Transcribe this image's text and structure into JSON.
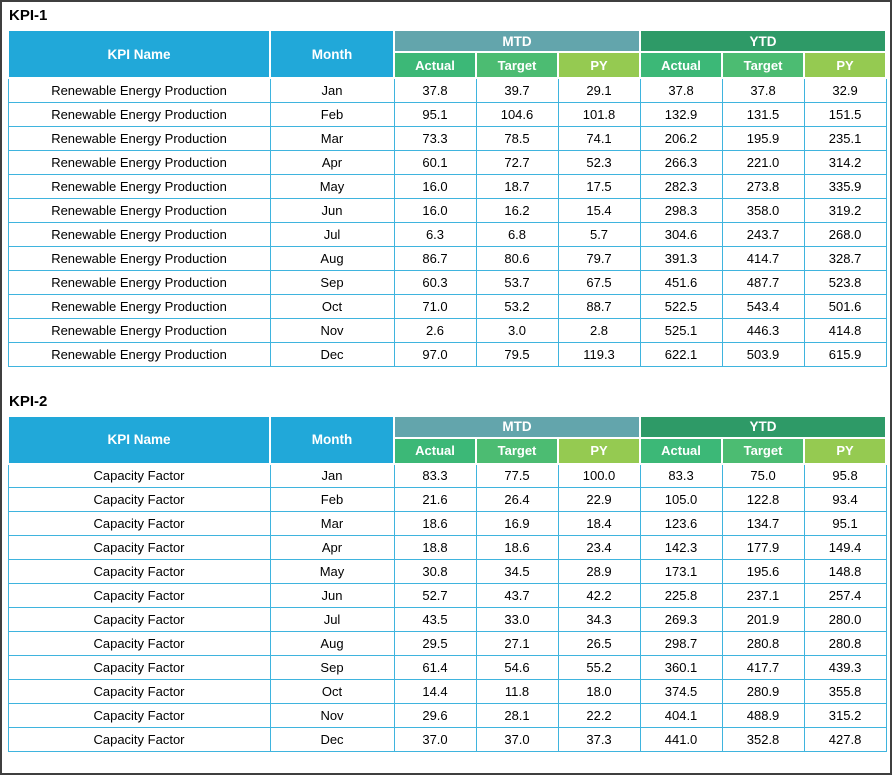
{
  "page": {
    "kind": "spreadsheet-kpi-report"
  },
  "colors": {
    "frame": "#3f3f3f",
    "text": "#000000",
    "header_cyan": "#21a8d9",
    "mtd_band": "#63a5ac",
    "ytd_band": "#2e9a67",
    "sub_actual": "#3cb877",
    "sub_target": "#4cbc72",
    "sub_py": "#95ca51",
    "grid_line": "#3fb4de"
  },
  "tables": [
    {
      "title": "KPI-1",
      "header": {
        "kpi_name": "KPI Name",
        "month": "Month",
        "groups": [
          "MTD",
          "YTD"
        ],
        "sub_columns": [
          "Actual",
          "Target",
          "PY"
        ]
      },
      "rows": [
        {
          "kpi": "Renewable Energy Production",
          "month": "Jan",
          "values": [
            "37.8",
            "39.7",
            "29.1",
            "37.8",
            "37.8",
            "32.9"
          ]
        },
        {
          "kpi": "Renewable Energy Production",
          "month": "Feb",
          "values": [
            "95.1",
            "104.6",
            "101.8",
            "132.9",
            "131.5",
            "151.5"
          ]
        },
        {
          "kpi": "Renewable Energy Production",
          "month": "Mar",
          "values": [
            "73.3",
            "78.5",
            "74.1",
            "206.2",
            "195.9",
            "235.1"
          ]
        },
        {
          "kpi": "Renewable Energy Production",
          "month": "Apr",
          "values": [
            "60.1",
            "72.7",
            "52.3",
            "266.3",
            "221.0",
            "314.2"
          ]
        },
        {
          "kpi": "Renewable Energy Production",
          "month": "May",
          "values": [
            "16.0",
            "18.7",
            "17.5",
            "282.3",
            "273.8",
            "335.9"
          ]
        },
        {
          "kpi": "Renewable Energy Production",
          "month": "Jun",
          "values": [
            "16.0",
            "16.2",
            "15.4",
            "298.3",
            "358.0",
            "319.2"
          ]
        },
        {
          "kpi": "Renewable Energy Production",
          "month": "Jul",
          "values": [
            "6.3",
            "6.8",
            "5.7",
            "304.6",
            "243.7",
            "268.0"
          ]
        },
        {
          "kpi": "Renewable Energy Production",
          "month": "Aug",
          "values": [
            "86.7",
            "80.6",
            "79.7",
            "391.3",
            "414.7",
            "328.7"
          ]
        },
        {
          "kpi": "Renewable Energy Production",
          "month": "Sep",
          "values": [
            "60.3",
            "53.7",
            "67.5",
            "451.6",
            "487.7",
            "523.8"
          ]
        },
        {
          "kpi": "Renewable Energy Production",
          "month": "Oct",
          "values": [
            "71.0",
            "53.2",
            "88.7",
            "522.5",
            "543.4",
            "501.6"
          ]
        },
        {
          "kpi": "Renewable Energy Production",
          "month": "Nov",
          "values": [
            "2.6",
            "3.0",
            "2.8",
            "525.1",
            "446.3",
            "414.8"
          ]
        },
        {
          "kpi": "Renewable Energy Production",
          "month": "Dec",
          "values": [
            "97.0",
            "79.5",
            "119.3",
            "622.1",
            "503.9",
            "615.9"
          ]
        }
      ]
    },
    {
      "title": "KPI-2",
      "header": {
        "kpi_name": "KPI Name",
        "month": "Month",
        "groups": [
          "MTD",
          "YTD"
        ],
        "sub_columns": [
          "Actual",
          "Target",
          "PY"
        ]
      },
      "rows": [
        {
          "kpi": "Capacity Factor",
          "month": "Jan",
          "values": [
            "83.3",
            "77.5",
            "100.0",
            "83.3",
            "75.0",
            "95.8"
          ]
        },
        {
          "kpi": "Capacity Factor",
          "month": "Feb",
          "values": [
            "21.6",
            "26.4",
            "22.9",
            "105.0",
            "122.8",
            "93.4"
          ]
        },
        {
          "kpi": "Capacity Factor",
          "month": "Mar",
          "values": [
            "18.6",
            "16.9",
            "18.4",
            "123.6",
            "134.7",
            "95.1"
          ]
        },
        {
          "kpi": "Capacity Factor",
          "month": "Apr",
          "values": [
            "18.8",
            "18.6",
            "23.4",
            "142.3",
            "177.9",
            "149.4"
          ]
        },
        {
          "kpi": "Capacity Factor",
          "month": "May",
          "values": [
            "30.8",
            "34.5",
            "28.9",
            "173.1",
            "195.6",
            "148.8"
          ]
        },
        {
          "kpi": "Capacity Factor",
          "month": "Jun",
          "values": [
            "52.7",
            "43.7",
            "42.2",
            "225.8",
            "237.1",
            "257.4"
          ]
        },
        {
          "kpi": "Capacity Factor",
          "month": "Jul",
          "values": [
            "43.5",
            "33.0",
            "34.3",
            "269.3",
            "201.9",
            "280.0"
          ]
        },
        {
          "kpi": "Capacity Factor",
          "month": "Aug",
          "values": [
            "29.5",
            "27.1",
            "26.5",
            "298.7",
            "280.8",
            "280.8"
          ]
        },
        {
          "kpi": "Capacity Factor",
          "month": "Sep",
          "values": [
            "61.4",
            "54.6",
            "55.2",
            "360.1",
            "417.7",
            "439.3"
          ]
        },
        {
          "kpi": "Capacity Factor",
          "month": "Oct",
          "values": [
            "14.4",
            "11.8",
            "18.0",
            "374.5",
            "280.9",
            "355.8"
          ]
        },
        {
          "kpi": "Capacity Factor",
          "month": "Nov",
          "values": [
            "29.6",
            "28.1",
            "22.2",
            "404.1",
            "488.9",
            "315.2"
          ]
        },
        {
          "kpi": "Capacity Factor",
          "month": "Dec",
          "values": [
            "37.0",
            "37.0",
            "37.3",
            "441.0",
            "352.8",
            "427.8"
          ]
        }
      ]
    }
  ]
}
